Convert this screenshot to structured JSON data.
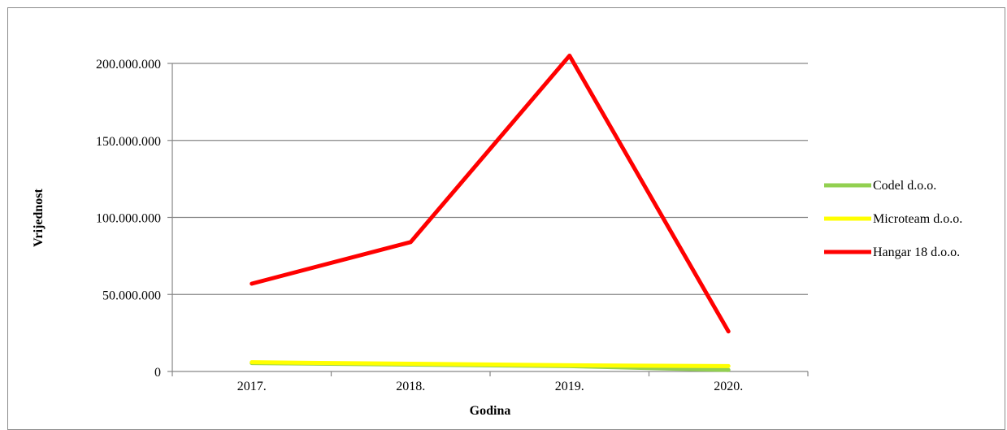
{
  "chart_data": {
    "type": "line",
    "categories": [
      "2017.",
      "2018.",
      "2019.",
      "2020."
    ],
    "xlabel": "Godina",
    "ylabel": "Vrijednost",
    "ylim": [
      0,
      200000000
    ],
    "yticks": [
      0,
      50000000,
      100000000,
      150000000,
      200000000
    ],
    "ytick_labels": [
      "0",
      "50.000.000",
      "100.000.000",
      "150.000.000",
      "200.000.000"
    ],
    "grid": "horizontal",
    "legend_position": "right",
    "series": [
      {
        "name": "Codel d.o.o.",
        "color": "#92d050",
        "values": [
          5500000,
          4500000,
          3500000,
          1000000
        ]
      },
      {
        "name": "Microteam d.o.o.",
        "color": "#ffff00",
        "values": [
          6000000,
          5000000,
          4000000,
          3500000
        ]
      },
      {
        "name": "Hangar 18 d.o.o.",
        "color": "#ff0000",
        "values": [
          57000000,
          84000000,
          205000000,
          26000000
        ]
      }
    ]
  }
}
